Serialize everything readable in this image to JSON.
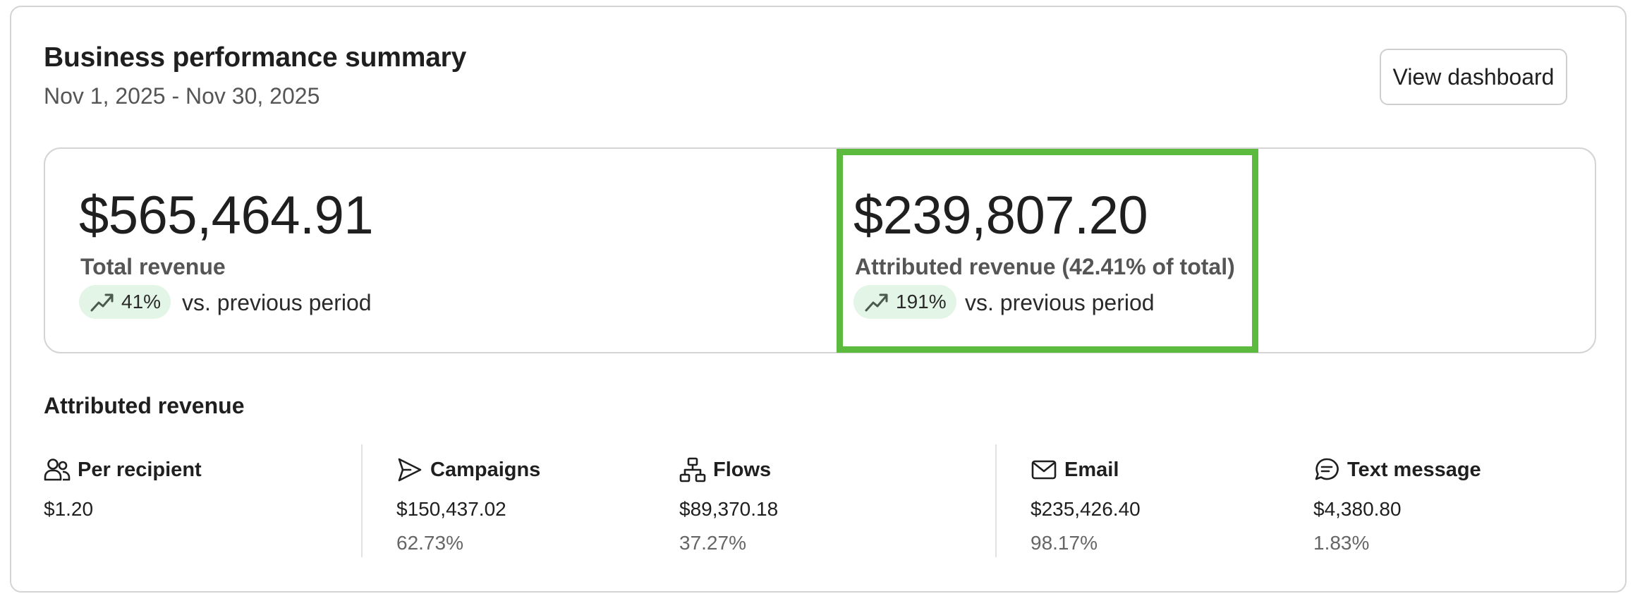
{
  "header": {
    "title": "Business performance summary",
    "date_range": "Nov 1, 2025 - Nov 30, 2025",
    "view_button_label": "View dashboard"
  },
  "summary": {
    "total": {
      "value": "$565,464.91",
      "label": "Total revenue",
      "change": "41%",
      "comparison": "vs. previous period"
    },
    "attributed": {
      "value": "$239,807.20",
      "label": "Attributed revenue (42.41% of total)",
      "change": "191%",
      "comparison": "vs. previous period"
    }
  },
  "attributed_section": {
    "title": "Attributed revenue",
    "stats": [
      {
        "label": "Per recipient",
        "icon": "people-icon",
        "value": "$1.20",
        "percent": ""
      },
      {
        "label": "Campaigns",
        "icon": "send-icon",
        "value": "$150,437.02",
        "percent": "62.73%"
      },
      {
        "label": "Flows",
        "icon": "flow-icon",
        "value": "$89,370.18",
        "percent": "37.27%"
      },
      {
        "label": "Email",
        "icon": "mail-icon",
        "value": "$235,426.40",
        "percent": "98.17%"
      },
      {
        "label": "Text message",
        "icon": "message-icon",
        "value": "$4,380.80",
        "percent": "1.83%"
      }
    ]
  },
  "colors": {
    "highlight": "#5cbb3f",
    "pill_background": "#e3f5e6",
    "trend_icon": "#4a5a4c"
  }
}
